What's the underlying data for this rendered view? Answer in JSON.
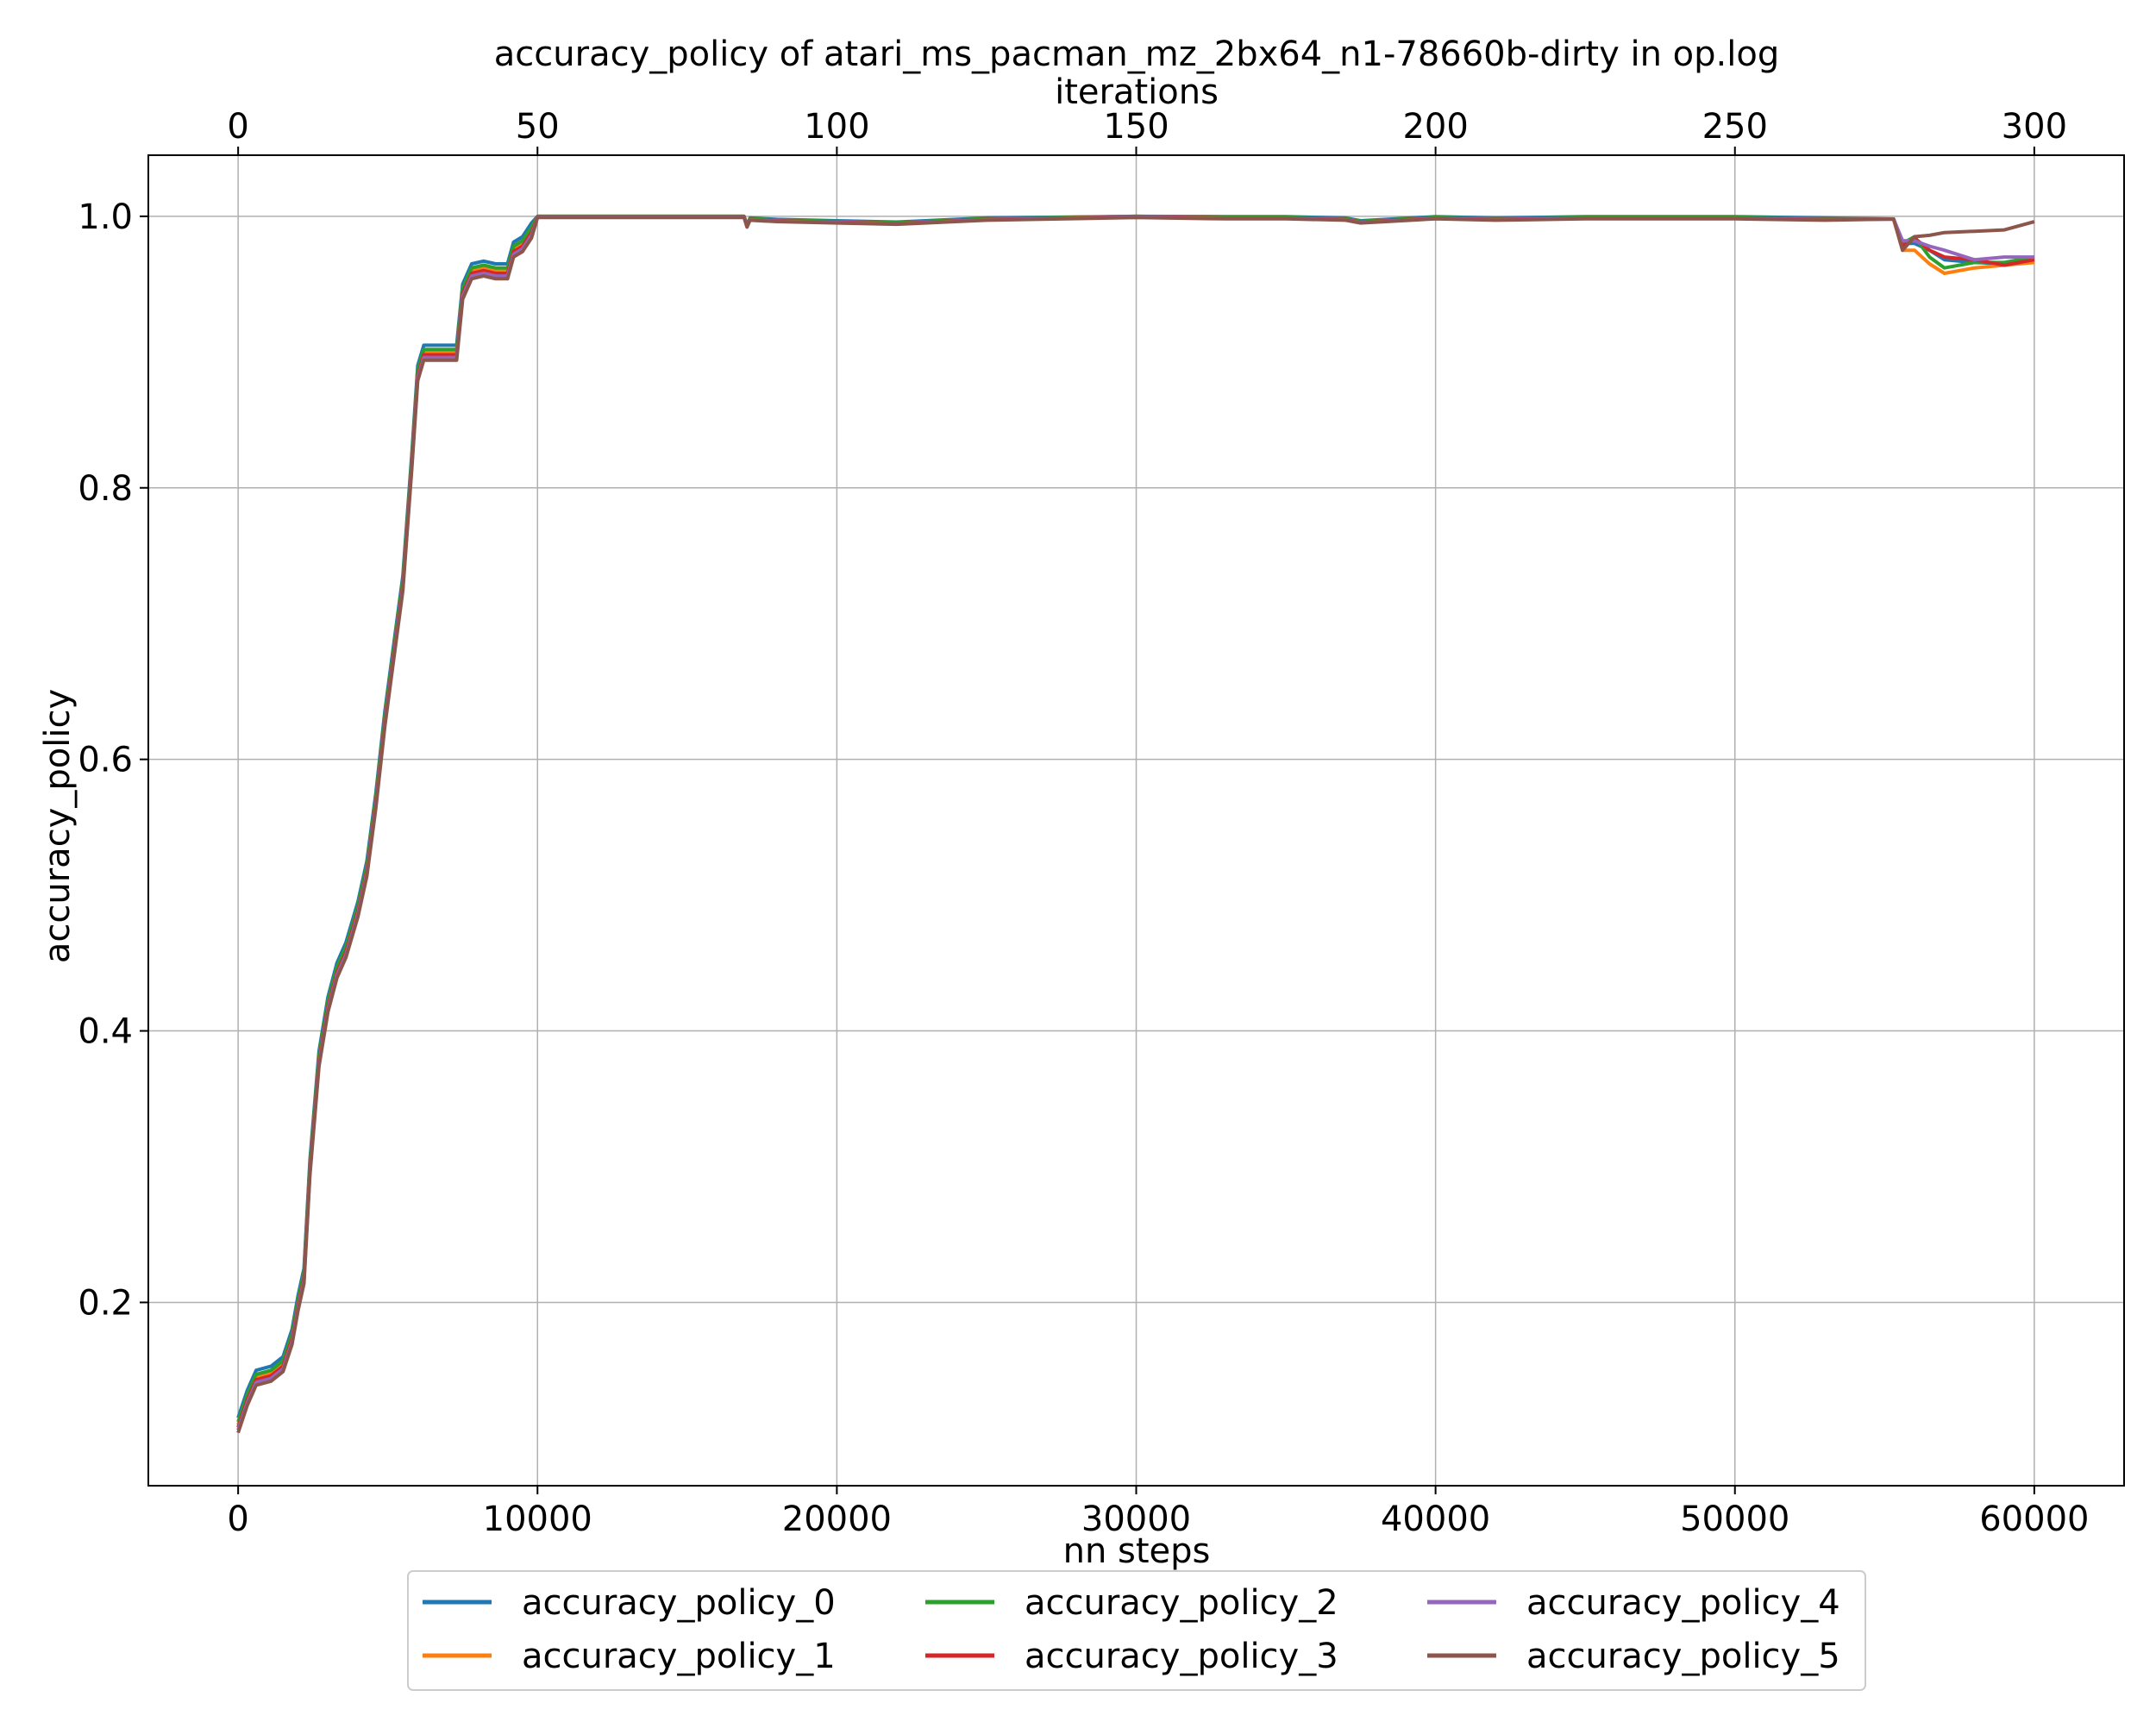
{
  "chart_data": {
    "type": "line",
    "title": "accuracy_policy of atari_ms_pacman_mz_2bx64_n1-78660b-dirty in op.log",
    "xlabel": "nn steps",
    "ylabel": "accuracy_policy",
    "x2label": "iterations",
    "xlim": [
      -3000,
      63000
    ],
    "ylim": [
      0.065,
      1.045
    ],
    "x2lim": [
      -15,
      315
    ],
    "xticks": [
      0,
      10000,
      20000,
      30000,
      40000,
      50000,
      60000
    ],
    "x2ticks": [
      0,
      50,
      100,
      150,
      200,
      250,
      300
    ],
    "yticks": [
      0.2,
      0.4,
      0.6,
      0.8,
      1.0
    ],
    "xtick_labels": [
      "0",
      "10000",
      "20000",
      "30000",
      "40000",
      "50000",
      "60000"
    ],
    "x2tick_labels": [
      "0",
      "50",
      "100",
      "150",
      "200",
      "250",
      "300"
    ],
    "ytick_labels": [
      "0.2",
      "0.4",
      "0.6",
      "0.8",
      "1.0"
    ],
    "grid": true,
    "legend_position": "below",
    "legend_columns": 3,
    "base": {
      "x": [
        0,
        300,
        600,
        1100,
        1500,
        1800,
        2000,
        2200,
        2400,
        2700,
        3000,
        3300,
        3600,
        4000,
        4300,
        4600,
        4900,
        5200,
        5500,
        5800,
        6000,
        6200,
        6600,
        7000,
        7300,
        7500,
        7800,
        8200,
        8600,
        9000,
        9200,
        9500,
        9800,
        10000,
        12000,
        15000,
        16900,
        17000,
        17100,
        18000,
        20000,
        22000,
        25000,
        30000,
        33000,
        35000,
        37000,
        37500,
        40000,
        42000,
        45000,
        48000,
        50000,
        53000,
        55300,
        55500,
        56000,
        56500,
        57000,
        58000,
        59000,
        60000
      ],
      "y": [
        0.11,
        0.13,
        0.145,
        0.148,
        0.155,
        0.175,
        0.2,
        0.22,
        0.3,
        0.38,
        0.42,
        0.445,
        0.46,
        0.49,
        0.52,
        0.57,
        0.63,
        0.68,
        0.73,
        0.82,
        0.885,
        0.9,
        0.9,
        0.9,
        0.9,
        0.945,
        0.96,
        0.962,
        0.96,
        0.96,
        0.976,
        0.98,
        0.99,
        1.0,
        1.0,
        1.0,
        1.0,
        0.993,
        0.998,
        0.997,
        0.996,
        0.995,
        0.998,
        1.0,
        0.999,
        0.999,
        0.998,
        0.996,
        0.999,
        0.998,
        0.999,
        0.999,
        0.999,
        0.998,
        0.998,
        0.985,
        0.985,
        0.986,
        0.984,
        0.982,
        0.981,
        0.98
      ]
    },
    "series": [
      {
        "name": "accuracy_policy_0",
        "color": "#1f77b4",
        "offset": 0.005,
        "tail": [
          [
            55300,
            0.998
          ],
          [
            55600,
            0.98
          ],
          [
            56000,
            0.98
          ],
          [
            56500,
            0.975
          ],
          [
            57000,
            0.968
          ],
          [
            58000,
            0.966
          ],
          [
            59000,
            0.965
          ],
          [
            60000,
            0.968
          ]
        ]
      },
      {
        "name": "accuracy_policy_1",
        "color": "#ff7f0e",
        "offset": 0.0,
        "tail": [
          [
            55300,
            0.998
          ],
          [
            55600,
            0.975
          ],
          [
            56000,
            0.975
          ],
          [
            56500,
            0.965
          ],
          [
            57000,
            0.958
          ],
          [
            58000,
            0.962
          ],
          [
            59000,
            0.964
          ],
          [
            60000,
            0.966
          ]
        ]
      },
      {
        "name": "accuracy_policy_2",
        "color": "#2ca02c",
        "offset": 0.002,
        "tail": [
          [
            55300,
            0.998
          ],
          [
            55600,
            0.98
          ],
          [
            56000,
            0.985
          ],
          [
            56500,
            0.97
          ],
          [
            57000,
            0.962
          ],
          [
            58000,
            0.966
          ],
          [
            59000,
            0.966
          ],
          [
            60000,
            0.97
          ]
        ]
      },
      {
        "name": "accuracy_policy_3",
        "color": "#d62728",
        "offset": -0.002,
        "tail": [
          [
            55300,
            0.998
          ],
          [
            55600,
            0.978
          ],
          [
            56000,
            0.984
          ],
          [
            56500,
            0.975
          ],
          [
            57000,
            0.97
          ],
          [
            58000,
            0.968
          ],
          [
            59000,
            0.964
          ],
          [
            60000,
            0.968
          ]
        ]
      },
      {
        "name": "accuracy_policy_4",
        "color": "#9467bd",
        "offset": -0.004,
        "tail": [
          [
            55300,
            0.998
          ],
          [
            55600,
            0.982
          ],
          [
            56000,
            0.982
          ],
          [
            56500,
            0.978
          ],
          [
            57000,
            0.975
          ],
          [
            58000,
            0.968
          ],
          [
            59000,
            0.97
          ],
          [
            60000,
            0.97
          ]
        ]
      },
      {
        "name": "accuracy_policy_5",
        "color": "#8c564b",
        "offset": -0.006,
        "tail": [
          [
            55300,
            0.998
          ],
          [
            55600,
            0.975
          ],
          [
            56000,
            0.985
          ],
          [
            56500,
            0.986
          ],
          [
            57000,
            0.988
          ],
          [
            58000,
            0.989
          ],
          [
            59000,
            0.99
          ],
          [
            60000,
            0.996
          ]
        ]
      }
    ]
  }
}
